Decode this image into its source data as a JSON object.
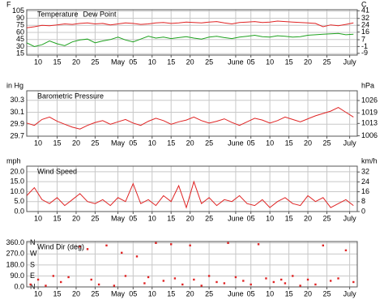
{
  "chart_data": [
    {
      "type": "line",
      "ylabel": "F",
      "y2label": "C",
      "x": [
        2,
        4,
        6,
        8,
        10,
        12,
        14,
        16,
        18,
        20,
        22,
        24,
        26,
        28,
        30,
        32,
        34,
        36,
        38,
        40,
        42,
        44,
        46,
        48,
        50,
        52,
        54,
        56,
        58,
        60,
        62,
        64,
        66,
        68,
        70,
        72,
        74,
        76,
        78,
        80,
        82,
        84,
        86,
        88
      ],
      "series": [
        {
          "name": "Temperature",
          "color": "#e02424",
          "values": [
            70,
            72,
            75,
            74,
            76,
            78,
            77,
            79,
            80,
            78,
            79,
            76,
            78,
            80,
            79,
            77,
            78,
            80,
            81,
            79,
            80,
            82,
            81,
            80,
            82,
            83,
            80,
            78,
            81,
            82,
            83,
            81,
            82,
            84,
            83,
            82,
            81,
            80,
            79,
            72,
            76,
            74,
            77,
            80
          ]
        },
        {
          "name": "Dew Point",
          "color": "#1fa21f",
          "values": [
            38,
            30,
            34,
            42,
            36,
            32,
            40,
            44,
            46,
            38,
            42,
            45,
            50,
            44,
            40,
            46,
            52,
            48,
            50,
            47,
            49,
            51,
            48,
            46,
            50,
            52,
            49,
            47,
            50,
            52,
            54,
            51,
            50,
            53,
            52,
            50,
            51,
            54,
            55,
            56,
            57,
            58,
            55,
            56
          ]
        }
      ],
      "xlim": [
        2,
        89
      ],
      "xticks": [
        {
          "value": 5,
          "label": "10"
        },
        {
          "value": 10,
          "label": "15"
        },
        {
          "value": 15,
          "label": "20"
        },
        {
          "value": 20,
          "label": "25"
        },
        {
          "value": 26,
          "label": "May"
        },
        {
          "value": 30,
          "label": "05"
        },
        {
          "value": 35,
          "label": "10"
        },
        {
          "value": 40,
          "label": "15"
        },
        {
          "value": 45,
          "label": "20"
        },
        {
          "value": 50,
          "label": "25"
        },
        {
          "value": 57,
          "label": "June"
        },
        {
          "value": 61,
          "label": "05"
        },
        {
          "value": 66,
          "label": "10"
        },
        {
          "value": 71,
          "label": "15"
        },
        {
          "value": 76,
          "label": "20"
        },
        {
          "value": 81,
          "label": "25"
        },
        {
          "value": 87,
          "label": "July"
        }
      ],
      "ylim": [
        12,
        108
      ],
      "yticks": [
        105,
        90,
        75,
        60,
        45,
        30,
        15
      ],
      "y2lim": [
        -11.1,
        42.2
      ],
      "y2ticks": [
        41,
        32,
        24,
        16,
        7,
        -1,
        -9
      ],
      "grid": true
    },
    {
      "type": "line",
      "title": "Barometric Pressure",
      "ylabel": "in Hg",
      "y2label": "hPa",
      "x": [
        2,
        4,
        6,
        8,
        10,
        12,
        14,
        16,
        18,
        20,
        22,
        24,
        26,
        28,
        30,
        32,
        34,
        36,
        38,
        40,
        42,
        44,
        46,
        48,
        50,
        52,
        54,
        56,
        58,
        60,
        62,
        64,
        66,
        68,
        70,
        72,
        74,
        76,
        78,
        80,
        82,
        84,
        86,
        88
      ],
      "series": [
        {
          "name": "Barometric Pressure",
          "color": "#e02424",
          "values": [
            29.92,
            29.88,
            29.98,
            30.02,
            29.95,
            29.9,
            29.85,
            29.82,
            29.88,
            29.93,
            29.96,
            29.9,
            29.94,
            29.98,
            29.92,
            29.88,
            29.95,
            30.0,
            29.96,
            29.9,
            29.94,
            29.97,
            30.02,
            29.96,
            29.92,
            29.95,
            29.99,
            29.93,
            29.88,
            29.94,
            30.0,
            29.97,
            29.92,
            29.96,
            30.02,
            29.98,
            29.94,
            29.99,
            30.04,
            30.08,
            30.12,
            30.18,
            30.1,
            30.02
          ]
        }
      ],
      "xlim": [
        2,
        89
      ],
      "xticks": [
        {
          "value": 5,
          "label": "10"
        },
        {
          "value": 10,
          "label": "15"
        },
        {
          "value": 15,
          "label": "20"
        },
        {
          "value": 20,
          "label": "25"
        },
        {
          "value": 26,
          "label": "May"
        },
        {
          "value": 30,
          "label": "05"
        },
        {
          "value": 35,
          "label": "10"
        },
        {
          "value": 40,
          "label": "15"
        },
        {
          "value": 45,
          "label": "20"
        },
        {
          "value": 50,
          "label": "25"
        },
        {
          "value": 57,
          "label": "June"
        },
        {
          "value": 61,
          "label": "05"
        },
        {
          "value": 66,
          "label": "10"
        },
        {
          "value": 71,
          "label": "15"
        },
        {
          "value": 76,
          "label": "20"
        },
        {
          "value": 81,
          "label": "25"
        },
        {
          "value": 87,
          "label": "July"
        }
      ],
      "ylim": [
        29.7,
        30.46
      ],
      "yticks": [
        30.3,
        30.1,
        29.9,
        29.7
      ],
      "y2lim": [
        1005.8,
        1031.5
      ],
      "y2ticks": [
        1026,
        1019,
        1013,
        1006
      ],
      "grid": true
    },
    {
      "type": "line",
      "title": "Wind Speed",
      "ylabel": "mph",
      "y2label": "km/h",
      "x": [
        2,
        4,
        6,
        8,
        10,
        12,
        14,
        16,
        18,
        20,
        22,
        24,
        26,
        28,
        30,
        32,
        34,
        36,
        38,
        40,
        42,
        44,
        46,
        48,
        50,
        52,
        54,
        56,
        58,
        60,
        62,
        64,
        66,
        68,
        70,
        72,
        74,
        76,
        78,
        80,
        82,
        84,
        86,
        88
      ],
      "series": [
        {
          "name": "Wind Speed",
          "color": "#e02424",
          "values": [
            8,
            12,
            6,
            4,
            7,
            3,
            6,
            9,
            5,
            4,
            6,
            3,
            7,
            5,
            14,
            4,
            6,
            3,
            8,
            5,
            13,
            2,
            15,
            4,
            7,
            3,
            6,
            5,
            8,
            4,
            3,
            6,
            2,
            5,
            7,
            4,
            3,
            8,
            5,
            7,
            2,
            4,
            6,
            3
          ]
        }
      ],
      "xlim": [
        2,
        89
      ],
      "xticks": [
        {
          "value": 5,
          "label": "10"
        },
        {
          "value": 10,
          "label": "15"
        },
        {
          "value": 15,
          "label": "20"
        },
        {
          "value": 20,
          "label": "25"
        },
        {
          "value": 26,
          "label": "May"
        },
        {
          "value": 30,
          "label": "05"
        },
        {
          "value": 35,
          "label": "10"
        },
        {
          "value": 40,
          "label": "15"
        },
        {
          "value": 45,
          "label": "20"
        },
        {
          "value": 50,
          "label": "25"
        },
        {
          "value": 57,
          "label": "June"
        },
        {
          "value": 61,
          "label": "05"
        },
        {
          "value": 66,
          "label": "10"
        },
        {
          "value": 71,
          "label": "15"
        },
        {
          "value": 76,
          "label": "20"
        },
        {
          "value": 81,
          "label": "25"
        },
        {
          "value": 87,
          "label": "July"
        }
      ],
      "ylim": [
        0,
        22.8
      ],
      "yticks": [
        {
          "value": 20,
          "label": "20.0"
        },
        {
          "value": 15,
          "label": "15.0"
        },
        {
          "value": 10,
          "label": "10.0"
        },
        {
          "value": 5,
          "label": "5.0"
        },
        {
          "value": 0,
          "label": "0.0"
        }
      ],
      "y2lim": [
        0,
        36.7
      ],
      "y2ticks": [
        32,
        24,
        16,
        8,
        0
      ],
      "grid": true
    },
    {
      "type": "scatter",
      "title": "Wind Dir (deg)",
      "x": [
        3,
        5,
        7,
        9,
        11,
        13,
        16,
        18,
        19,
        21,
        23,
        25,
        27,
        28,
        31,
        33,
        34,
        36,
        38,
        40,
        41,
        43,
        45,
        46,
        48,
        50,
        52,
        54,
        55,
        57,
        59,
        61,
        63,
        65,
        67,
        69,
        70,
        72,
        74,
        76,
        78,
        80,
        82,
        84,
        86,
        88
      ],
      "series": [
        {
          "name": "Wind Dir (deg)",
          "color": "#e02424",
          "values": [
            20,
            60,
            10,
            90,
            40,
            80,
            330,
            310,
            60,
            20,
            340,
            10,
            280,
            90,
            250,
            30,
            80,
            360,
            50,
            350,
            70,
            20,
            340,
            60,
            10,
            90,
            40,
            30,
            360,
            80,
            50,
            20,
            350,
            70,
            40,
            60,
            30,
            90,
            10,
            60,
            20,
            340,
            50,
            70,
            300,
            40
          ]
        }
      ],
      "xlim": [
        2,
        89
      ],
      "xticks": [
        {
          "value": 5,
          "label": "10"
        },
        {
          "value": 10,
          "label": "15"
        },
        {
          "value": 15,
          "label": "20"
        },
        {
          "value": 20,
          "label": "25"
        },
        {
          "value": 26,
          "label": "May"
        },
        {
          "value": 30,
          "label": "05"
        },
        {
          "value": 35,
          "label": "10"
        },
        {
          "value": 40,
          "label": "15"
        },
        {
          "value": 45,
          "label": "20"
        },
        {
          "value": 50,
          "label": "25"
        },
        {
          "value": 57,
          "label": "June"
        },
        {
          "value": 61,
          "label": "05"
        },
        {
          "value": 66,
          "label": "10"
        },
        {
          "value": 71,
          "label": "15"
        },
        {
          "value": 76,
          "label": "20"
        },
        {
          "value": 81,
          "label": "25"
        },
        {
          "value": 87,
          "label": "July"
        }
      ],
      "ylim": [
        0,
        372
      ],
      "yticks": [
        {
          "value": 360,
          "label": "360.0"
        },
        {
          "value": 270,
          "label": "270.0"
        },
        {
          "value": 180,
          "label": "180.0"
        },
        {
          "value": 90,
          "label": "90.0"
        },
        {
          "value": 0,
          "label": "0.0"
        }
      ],
      "direction_ticks": [
        {
          "value": 360,
          "label": "N"
        },
        {
          "value": 270,
          "label": "W"
        },
        {
          "value": 180,
          "label": "S"
        },
        {
          "value": 90,
          "label": "E"
        },
        {
          "value": 0,
          "label": "N"
        }
      ],
      "grid": true
    }
  ]
}
